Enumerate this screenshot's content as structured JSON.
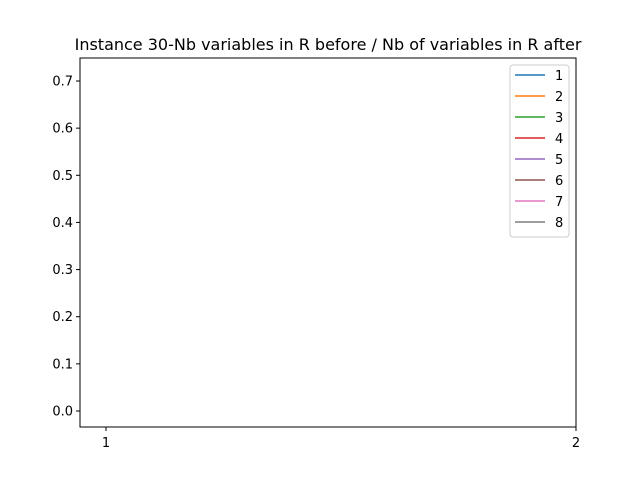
{
  "chart_data": {
    "type": "line",
    "title": "Instance 30-Nb variables in R before / Nb of variables in R after",
    "xlabel": "",
    "ylabel": "",
    "x_ticks": [
      "1",
      "2"
    ],
    "xlim": [
      1,
      2
    ],
    "ylim": [
      0.0,
      0.7
    ],
    "y_ticks": [
      "0.0",
      "0.1",
      "0.2",
      "0.3",
      "0.4",
      "0.5",
      "0.6",
      "0.7"
    ],
    "grid": false,
    "legend_position": "top-right",
    "series": [
      {
        "name": "1",
        "color": "#1f77b4",
        "x": [],
        "values": []
      },
      {
        "name": "2",
        "color": "#ff7f0e",
        "x": [],
        "values": []
      },
      {
        "name": "3",
        "color": "#2ca02c",
        "x": [],
        "values": []
      },
      {
        "name": "4",
        "color": "#d62728",
        "x": [],
        "values": []
      },
      {
        "name": "5",
        "color": "#9467bd",
        "x": [],
        "values": []
      },
      {
        "name": "6",
        "color": "#8c564b",
        "x": [],
        "values": []
      },
      {
        "name": "7",
        "color": "#e377c2",
        "x": [],
        "values": []
      },
      {
        "name": "8",
        "color": "#7f7f7f",
        "x": [],
        "values": []
      }
    ]
  }
}
